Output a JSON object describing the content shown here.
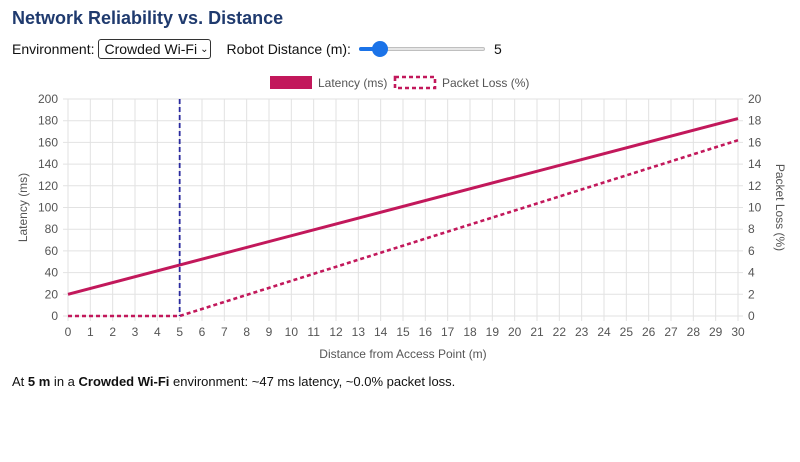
{
  "page": {
    "title": "Network Reliability vs. Distance"
  },
  "controls": {
    "environment_label": "Environment:",
    "environment_value": "Crowded Wi-Fi",
    "distance_label": "Robot Distance (m):",
    "distance_value": "5",
    "distance_min": 0,
    "distance_max": 30,
    "distance_fraction": 0.1667
  },
  "summary": {
    "prefix": "At ",
    "distance": "5 m",
    "mid": " in a ",
    "environment": "Crowded Wi-Fi",
    "suffix": " environment: ~47 ms latency, ~0.0% packet loss."
  },
  "colors": {
    "latency": "#c2185b",
    "packet_loss": "#c2185b",
    "marker": "#2a2a9e",
    "accent": "#1b73e8",
    "title": "#1f3a6e"
  },
  "chart_data": {
    "type": "line",
    "xlabel": "Distance from Access Point (m)",
    "ylabel": "Latency (ms)",
    "y2label": "Packet Loss (%)",
    "xlim": [
      0,
      30
    ],
    "ylim": [
      0,
      200
    ],
    "y2lim": [
      0,
      20
    ],
    "x_ticks": [
      0,
      1,
      2,
      3,
      4,
      5,
      6,
      7,
      8,
      9,
      10,
      11,
      12,
      13,
      14,
      15,
      16,
      17,
      18,
      19,
      20,
      21,
      22,
      23,
      24,
      25,
      26,
      27,
      28,
      29,
      30
    ],
    "y_ticks": [
      0,
      20,
      40,
      60,
      80,
      100,
      120,
      140,
      160,
      180,
      200
    ],
    "y2_ticks": [
      0,
      2,
      4,
      6,
      8,
      10,
      12,
      14,
      16,
      18,
      20
    ],
    "grid": true,
    "legend_position": "top-center",
    "marker_x": 5,
    "series": [
      {
        "name": "Latency (ms)",
        "axis": "left",
        "style": "solid",
        "x": [
          0,
          30
        ],
        "y": [
          20,
          182
        ]
      },
      {
        "name": "Packet Loss (%)",
        "axis": "right",
        "style": "dashed",
        "x": [
          0,
          5,
          30
        ],
        "y": [
          0,
          0,
          16.2
        ]
      }
    ]
  }
}
